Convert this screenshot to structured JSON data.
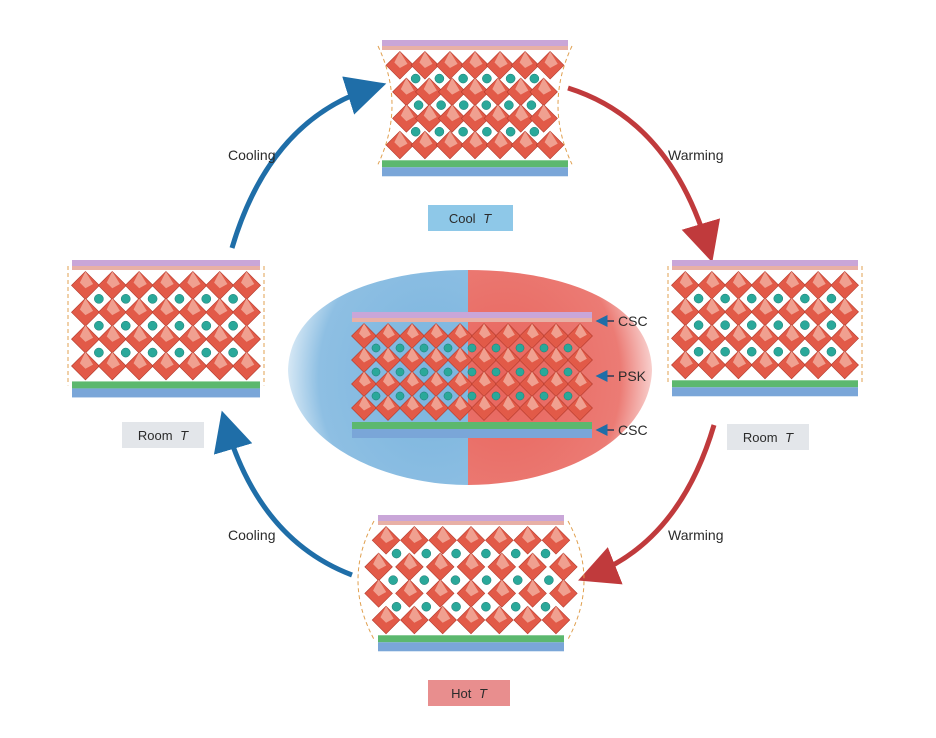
{
  "arrows": {
    "top_left": "Cooling",
    "top_right": "Warming",
    "bottom_left": "Cooling",
    "bottom_right": "Warming"
  },
  "states": {
    "top": {
      "word": "Cool",
      "var": "T",
      "color": "#8ec8e8"
    },
    "left": {
      "word": "Room",
      "var": "T",
      "color": "#e3e6ea"
    },
    "right": {
      "word": "Room",
      "var": "T",
      "color": "#e3e6ea"
    },
    "bottom": {
      "word": "Hot",
      "var": "T",
      "color": "#e88e8e"
    }
  },
  "layers": {
    "top": "CSC",
    "middle": "PSK",
    "bottom": "CSC"
  },
  "colors": {
    "cooling_arrow": "#1f6ea8",
    "warming_arrow": "#c03a3c",
    "cold_glow": "#7ab4de",
    "hot_glow": "#e8645c",
    "octahedron": "#e25a48",
    "octahedron_light": "#f4b8a8",
    "cation": "#2aa89a",
    "top_electrode": "#c9a6d8",
    "bottom_electrode": "#7aa6d8",
    "transport_layer": "#5cb86e"
  }
}
